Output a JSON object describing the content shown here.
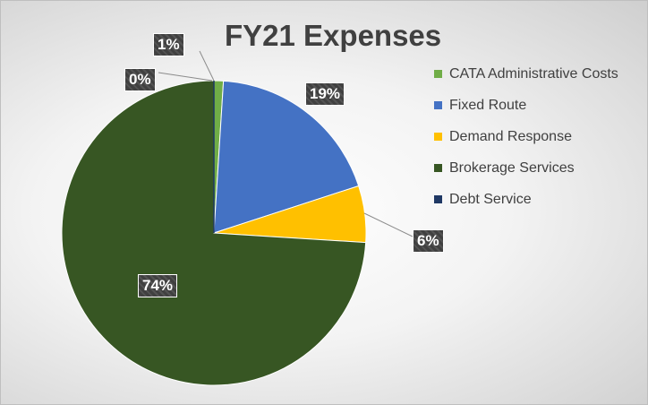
{
  "chart_data": {
    "type": "pie",
    "title": "FY21 Expenses",
    "legend_position": "right",
    "slices": [
      {
        "name": "CATA Administrative Costs",
        "value": 1,
        "label": "1%",
        "color": "#70ad47"
      },
      {
        "name": "Fixed Route",
        "value": 19,
        "label": "19%",
        "color": "#4472c4"
      },
      {
        "name": "Demand Response",
        "value": 6,
        "label": "6%",
        "color": "#ffc000"
      },
      {
        "name": "Brokerage Services",
        "value": 74,
        "label": "74%",
        "color": "#375623"
      },
      {
        "name": "Debt Service",
        "value": 0,
        "label": "0%",
        "color": "#1f3864"
      }
    ]
  }
}
